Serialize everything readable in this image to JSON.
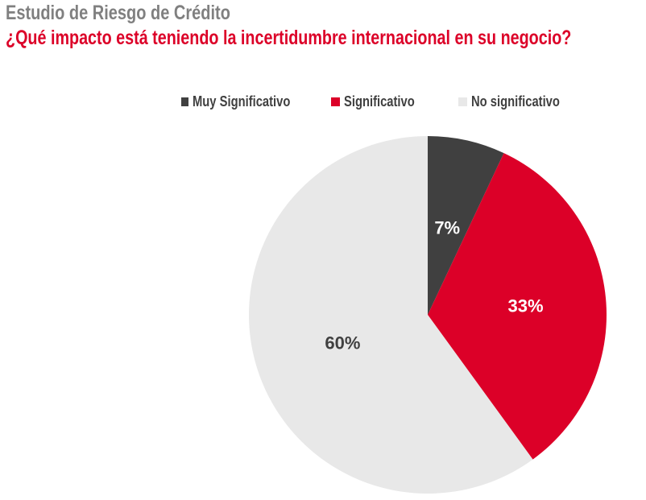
{
  "chart_data": {
    "type": "pie",
    "title": "Estudio de Riesgo de Crédito",
    "subtitle": "¿Qué impacto está teniendo la incertidumbre internacional en su negocio?",
    "legend_position": "top",
    "categories": [
      "Muy Significativo",
      "Significativo",
      "No significativo"
    ],
    "values": [
      7,
      33,
      60
    ],
    "data_labels": [
      "7%",
      "33%",
      "60%"
    ],
    "colors": [
      "#404040",
      "#dc0028",
      "#e8e8e8"
    ],
    "label_colors": [
      "#ffffff",
      "#ffffff",
      "#404040"
    ]
  }
}
